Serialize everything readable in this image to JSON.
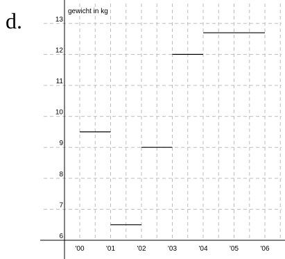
{
  "panel_label": "d.",
  "chart_data": {
    "type": "line",
    "ylabel": "gewicht in kg",
    "xlabel": "",
    "ylim": [
      6,
      13
    ],
    "y_ticks": [
      "6",
      "7",
      "8",
      "9",
      "10",
      "11",
      "12",
      "13"
    ],
    "x_ticks": [
      "'00",
      "'01",
      "'02",
      "'03",
      "'04",
      "'05",
      "'06"
    ],
    "grid": true,
    "series": [
      {
        "segments": [
          {
            "x_start": "'00",
            "x_end": "'01",
            "y": 9.5
          },
          {
            "x_start": "'01",
            "x_end": "'02",
            "y": 6.5
          },
          {
            "x_start": "'02",
            "x_end": "'03",
            "y": 9.0
          },
          {
            "x_start": "'03",
            "x_end": "'04",
            "y": 12.0
          },
          {
            "x_start": "'04",
            "x_end": "'06",
            "y": 12.7
          }
        ]
      }
    ]
  }
}
